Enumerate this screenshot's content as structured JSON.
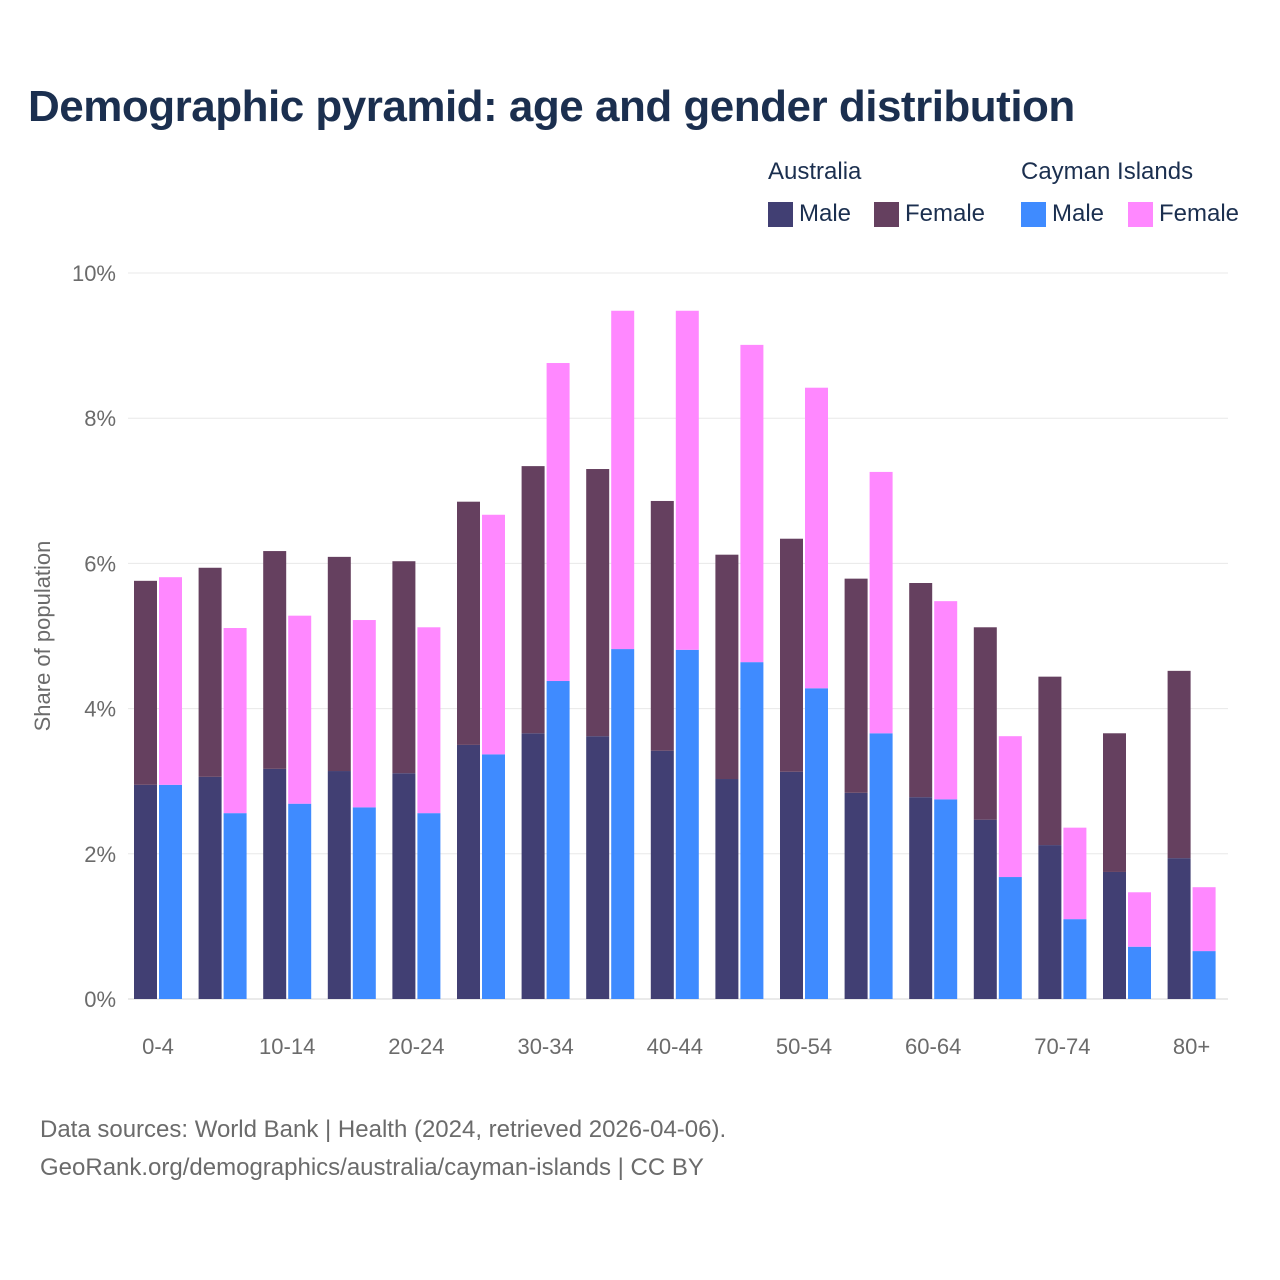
{
  "chart_data": {
    "type": "bar",
    "stacked": true,
    "title": "Demographic pyramid: age and gender distribution",
    "ylabel": "Share of population",
    "xlabel": "",
    "ylim": [
      0,
      10
    ],
    "yticks": [
      "0%",
      "2%",
      "4%",
      "6%",
      "8%",
      "10%"
    ],
    "ytick_values": [
      0,
      2,
      4,
      6,
      8,
      10
    ],
    "grid": true,
    "legend_placement": "top-right",
    "categories": [
      "0-4",
      "5-9",
      "10-14",
      "15-19",
      "20-24",
      "25-29",
      "30-34",
      "35-39",
      "40-44",
      "45-49",
      "50-54",
      "55-59",
      "60-64",
      "65-69",
      "70-74",
      "75-79",
      "80+"
    ],
    "xtick_labels_shown": [
      "0-4",
      "10-14",
      "20-24",
      "30-34",
      "40-44",
      "50-54",
      "60-64",
      "70-74",
      "80+"
    ],
    "groups": [
      {
        "name": "Australia",
        "series": [
          {
            "name": "Male",
            "color": "#413f73",
            "values": [
              2.95,
              3.06,
              3.17,
              3.14,
              3.11,
              3.5,
              3.66,
              3.62,
              3.42,
              3.03,
              3.13,
              2.84,
              2.78,
              2.47,
              2.12,
              1.75,
              1.94
            ]
          },
          {
            "name": "Female",
            "color": "#65405f",
            "values": [
              2.81,
              2.88,
              3.0,
              2.95,
              2.92,
              3.35,
              3.68,
              3.68,
              3.44,
              3.09,
              3.21,
              2.95,
              2.95,
              2.65,
              2.32,
              1.91,
              2.58
            ]
          }
        ]
      },
      {
        "name": "Cayman Islands",
        "series": [
          {
            "name": "Male",
            "color": "#3f8bff",
            "values": [
              2.95,
              2.56,
              2.69,
              2.64,
              2.56,
              3.37,
              4.38,
              4.82,
              4.81,
              4.64,
              4.28,
              3.66,
              2.75,
              1.68,
              1.1,
              0.72,
              0.66
            ]
          },
          {
            "name": "Female",
            "color": "#ff88ff",
            "values": [
              2.86,
              2.55,
              2.59,
              2.58,
              2.56,
              3.3,
              4.38,
              4.66,
              4.67,
              4.37,
              4.14,
              3.6,
              2.73,
              1.94,
              1.26,
              0.75,
              0.88
            ]
          }
        ]
      }
    ]
  },
  "footer": {
    "line1": "Data sources: World Bank | Health (2024, retrieved 2026-04-06).",
    "line2": "GeoRank.org/demographics/australia/cayman-islands | CC BY"
  }
}
